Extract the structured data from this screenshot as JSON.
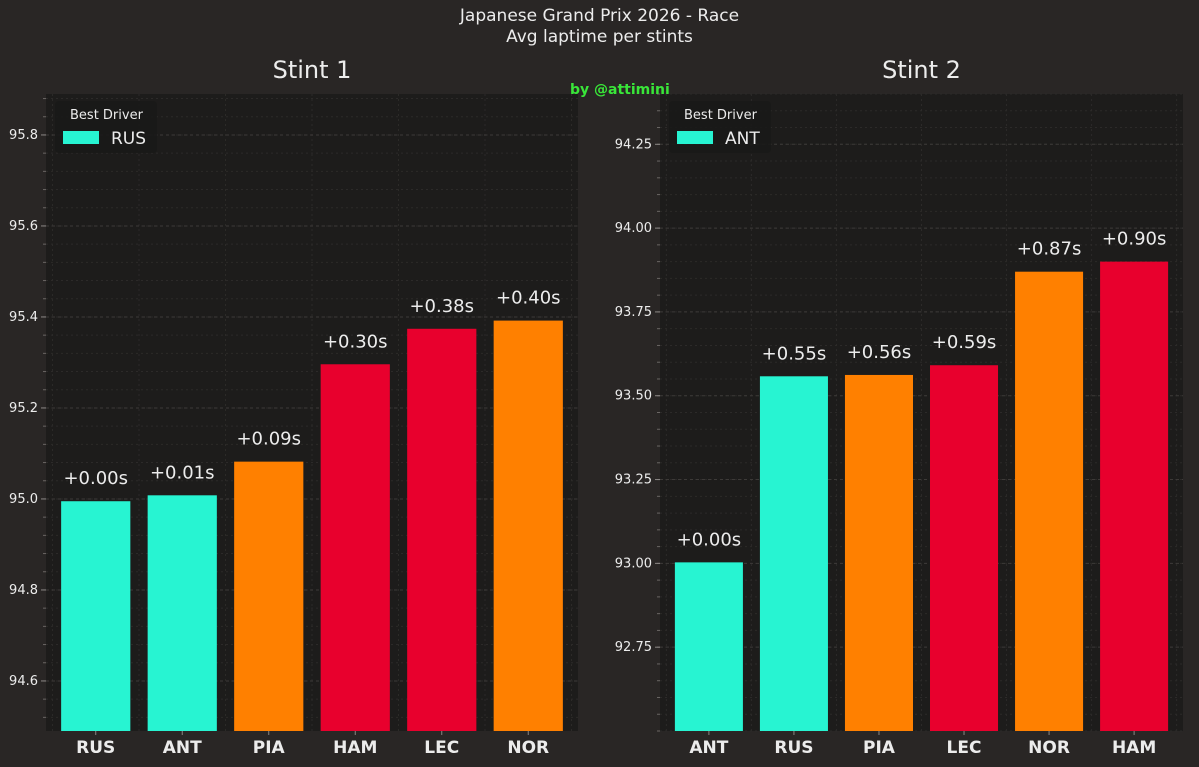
{
  "title": {
    "line1": "Japanese Grand Prix 2026 - Race",
    "line2": "Avg laptime per stints"
  },
  "credit": "by @attimini",
  "colors": {
    "background": "#292625",
    "plot_bg": "#1d1c1b",
    "grid": "#3d3a38",
    "text": "#ececec",
    "credit": "#39e639",
    "mercedes": "#27f4d2",
    "mclaren": "#ff8000",
    "ferrari": "#e8002d"
  },
  "chart_data": [
    {
      "type": "bar",
      "title": "Stint 1",
      "legend_title": "Best Driver",
      "legend_label": "RUS",
      "legend_position": "top-left",
      "categories": [
        "RUS",
        "ANT",
        "PIA",
        "HAM",
        "LEC",
        "NOR"
      ],
      "values": [
        94.995,
        95.008,
        95.082,
        95.296,
        95.374,
        95.392
      ],
      "labels": [
        "+0.00s",
        "+0.01s",
        "+0.09s",
        "+0.30s",
        "+0.38s",
        "+0.40s"
      ],
      "teams": [
        "mercedes",
        "mercedes",
        "mclaren",
        "ferrari",
        "ferrari",
        "mclaren"
      ],
      "ylim": [
        94.49,
        95.89
      ],
      "yticks": [
        94.6,
        94.8,
        95.0,
        95.2,
        95.4,
        95.6,
        95.8
      ],
      "ytick_labels": [
        "94.6",
        "94.8",
        "95.0",
        "95.2",
        "95.4",
        "95.6",
        "95.8"
      ],
      "grid": true,
      "xlabel": "",
      "ylabel": ""
    },
    {
      "type": "bar",
      "title": "Stint 2",
      "legend_title": "Best Driver",
      "legend_label": "ANT",
      "legend_position": "top-left",
      "categories": [
        "ANT",
        "RUS",
        "PIA",
        "LEC",
        "NOR",
        "HAM"
      ],
      "values": [
        93.003,
        93.558,
        93.562,
        93.591,
        93.87,
        93.9
      ],
      "labels": [
        "+0.00s",
        "+0.55s",
        "+0.56s",
        "+0.59s",
        "+0.87s",
        "+0.90s"
      ],
      "teams": [
        "mercedes",
        "mercedes",
        "mclaren",
        "ferrari",
        "mclaren",
        "ferrari"
      ],
      "ylim": [
        92.5,
        94.4
      ],
      "yticks": [
        92.75,
        93.0,
        93.25,
        93.5,
        93.75,
        94.0,
        94.25
      ],
      "ytick_labels": [
        "92.75",
        "93.00",
        "93.25",
        "93.50",
        "93.75",
        "94.00",
        "94.25"
      ],
      "grid": true,
      "xlabel": "",
      "ylabel": ""
    }
  ]
}
